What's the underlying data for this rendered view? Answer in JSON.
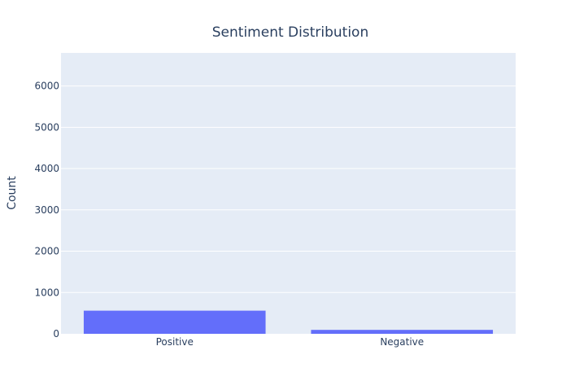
{
  "chart_data": {
    "type": "bar",
    "title": "Sentiment Distribution",
    "xlabel": "",
    "ylabel": "Count",
    "categories": [
      "Positive",
      "Negative"
    ],
    "values": [
      560,
      95
    ],
    "ylim": [
      0,
      6800
    ],
    "yticks": [
      0,
      1000,
      2000,
      3000,
      4000,
      5000,
      6000
    ],
    "ytick_labels": [
      "0",
      "1000",
      "2000",
      "3000",
      "4000",
      "5000",
      "6000"
    ],
    "grid": true,
    "legend": "none",
    "colors": {
      "bar": "#636efa",
      "plot_background": "#e5ecf6",
      "gridline": "#ffffff",
      "text": "#2a3f5f"
    }
  }
}
